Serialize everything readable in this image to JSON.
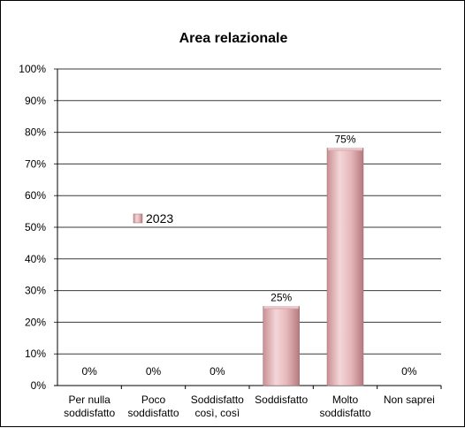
{
  "chart_data": {
    "type": "bar",
    "title": "Area relazionale",
    "categories": [
      [
        "Per nulla",
        "soddisfatto"
      ],
      [
        "Poco",
        "soddisfatto"
      ],
      [
        "Soddisfatto",
        "così, così"
      ],
      [
        "Soddisfatto"
      ],
      [
        "Molto",
        "soddisfatto"
      ],
      [
        "Non saprei"
      ]
    ],
    "series": [
      {
        "name": "2023",
        "values": [
          0,
          0,
          0,
          25,
          75,
          0
        ]
      }
    ],
    "data_labels": [
      "0%",
      "0%",
      "0%",
      "25%",
      "75%",
      "0%"
    ],
    "y_ticks": [
      "0%",
      "10%",
      "20%",
      "30%",
      "40%",
      "50%",
      "60%",
      "70%",
      "80%",
      "90%",
      "100%"
    ],
    "ylim": [
      0,
      100
    ],
    "grid": true,
    "legend_position": "middle-left",
    "bar_color": "#d9a0a4"
  }
}
